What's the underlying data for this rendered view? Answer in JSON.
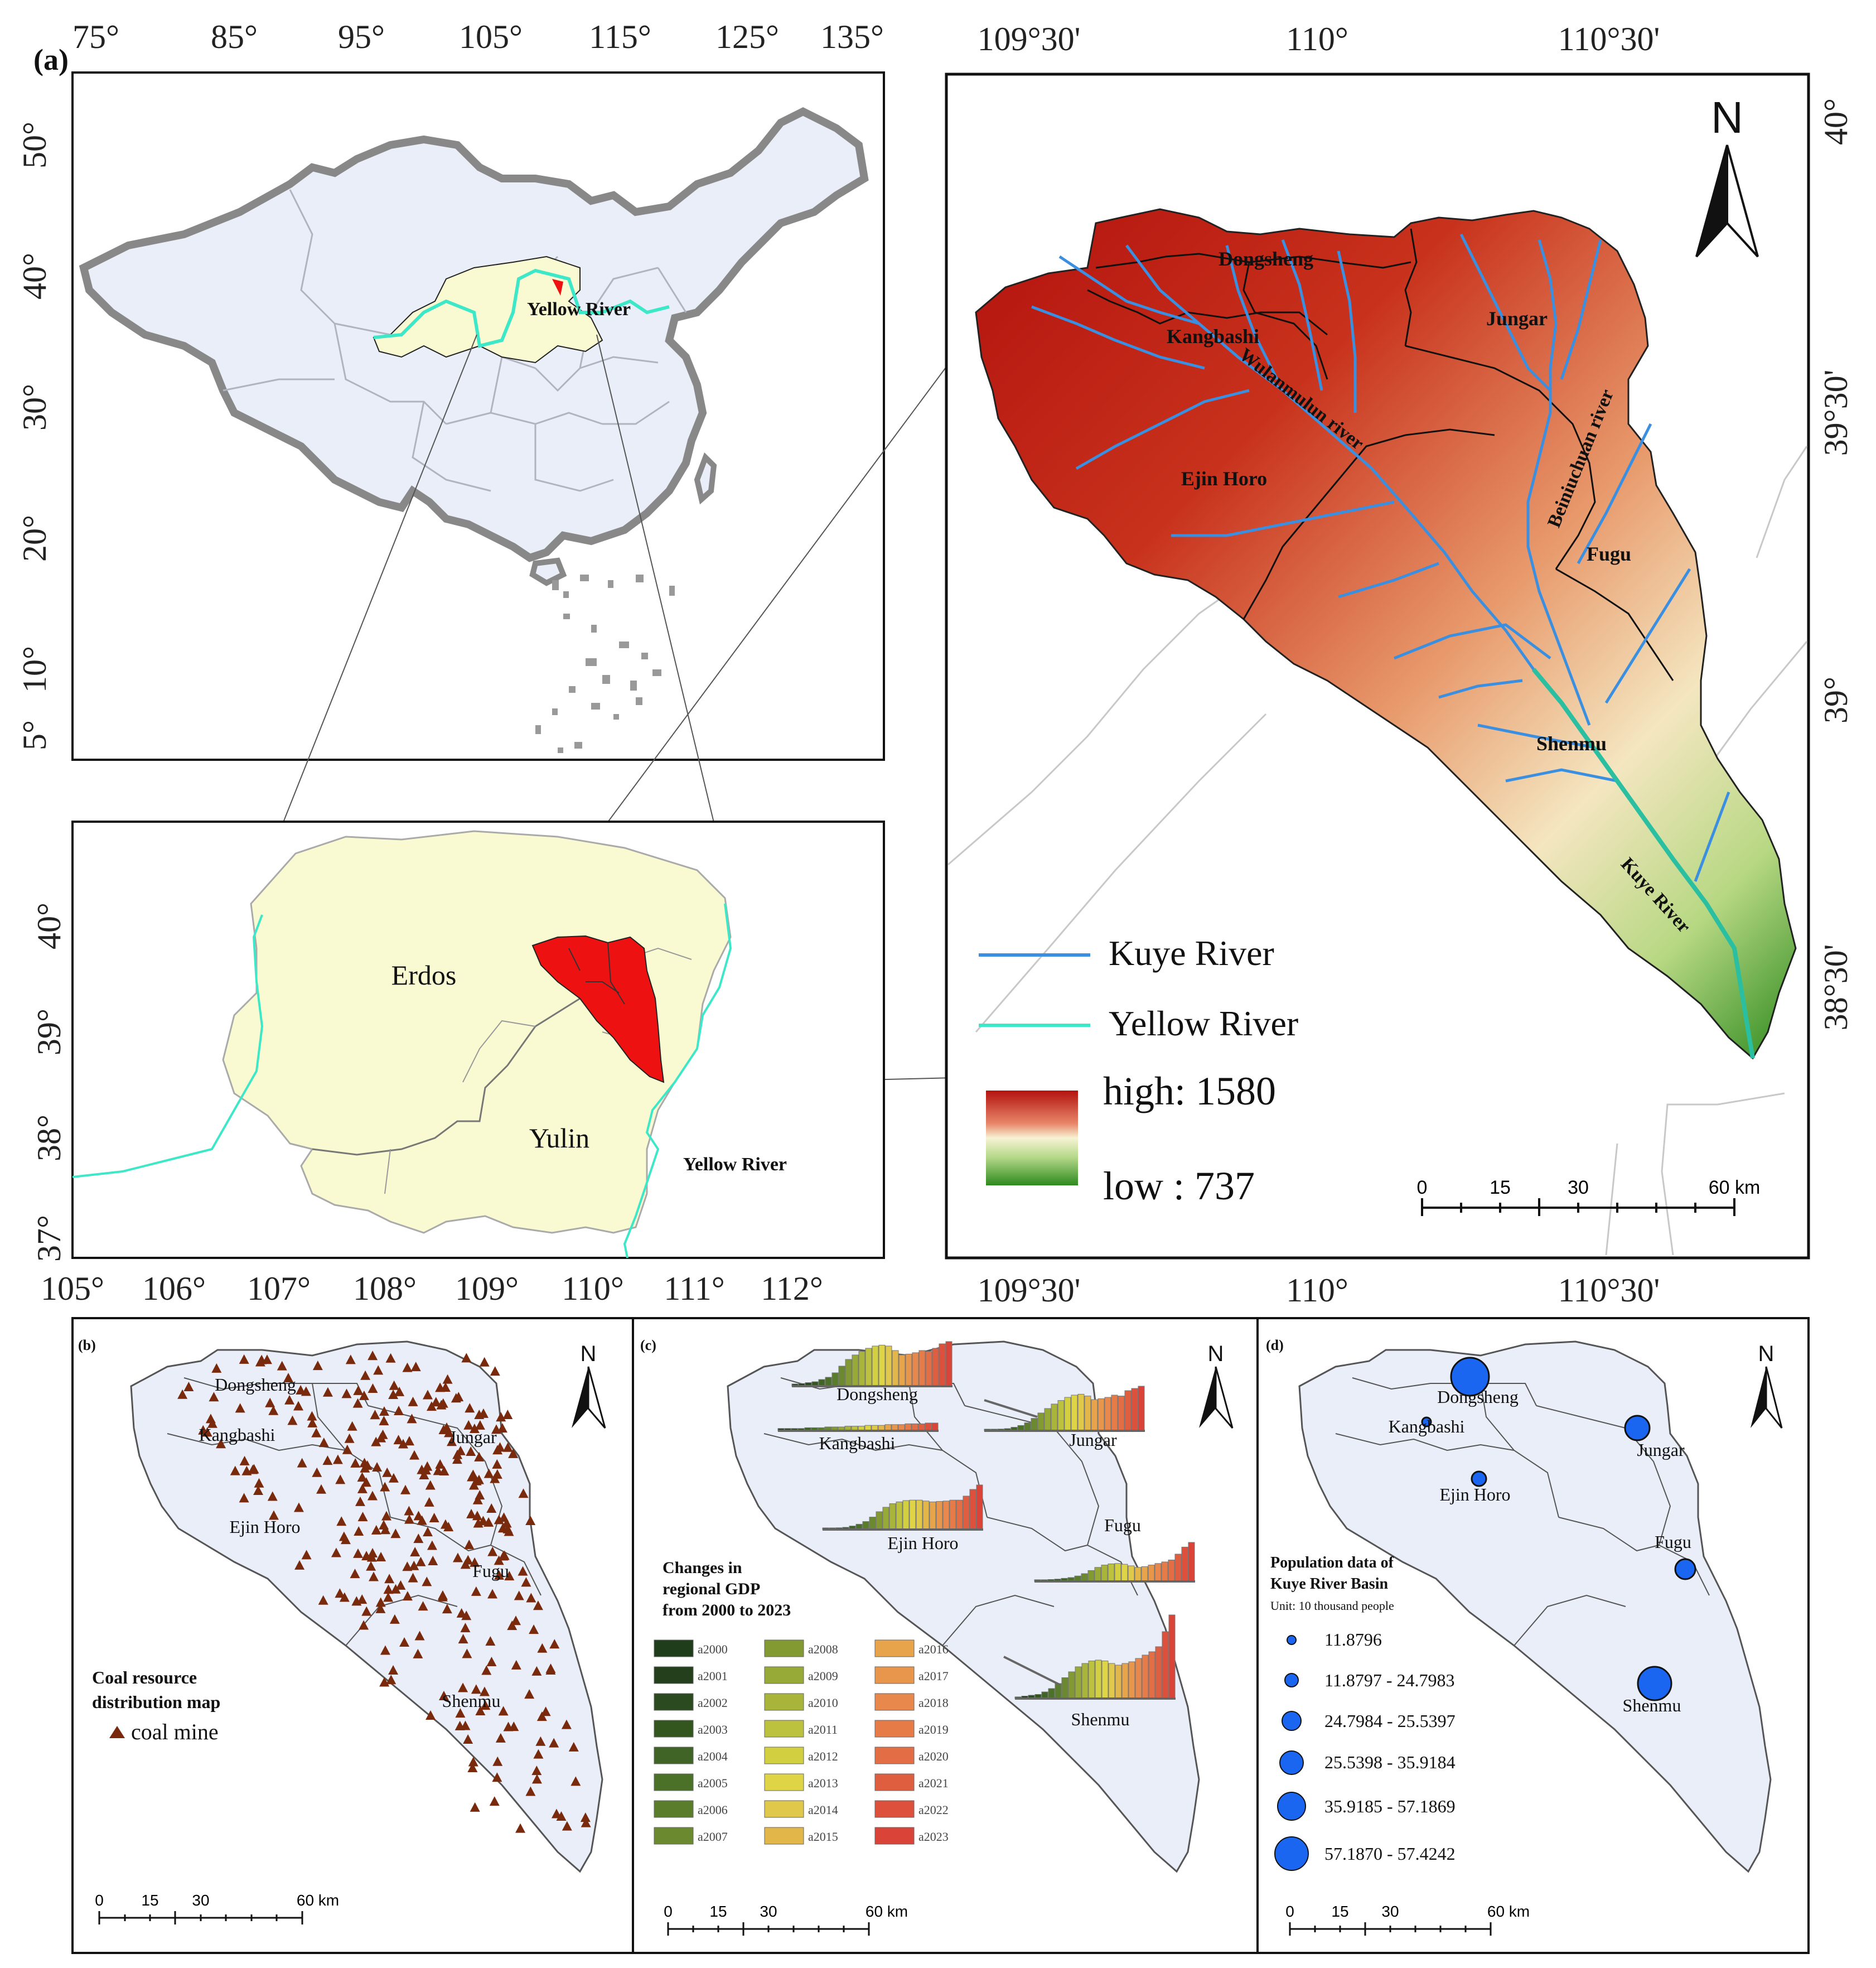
{
  "panel_a": {
    "tag": "(a)",
    "top_lon_ticks": [
      "75°",
      "85°",
      "95°",
      "105°",
      "115°",
      "125°",
      "135°"
    ],
    "china_lat_ticks": [
      "50°",
      "40°",
      "30°",
      "20°",
      "10°",
      "5°"
    ],
    "china_label_yellow_river": "Yellow River",
    "region_lat_ticks": [
      "40°",
      "39°",
      "38°",
      "37°"
    ],
    "region_lon_ticks": [
      "105°",
      "106°",
      "107°",
      "108°",
      "109°",
      "110°",
      "111°",
      "112°"
    ],
    "region_labels": {
      "erdos": "Erdos",
      "yulin": "Yulin",
      "yellow_river": "Yellow River"
    },
    "basin_top_ticks": [
      "109°30'",
      "110°",
      "110°30'"
    ],
    "basin_bottom_ticks": [
      "109°30'",
      "110°",
      "110°30'"
    ],
    "basin_right_ticks": [
      "40°",
      "39°30'",
      "39°",
      "38°30'"
    ],
    "north": "N",
    "places": {
      "dongsheng": "Dongsheng",
      "jungar": "Jungar",
      "kangbashi": "Kangbashi",
      "ejin_horo": "Ejin Horo",
      "fugu": "Fugu",
      "shenmu": "Shenmu"
    },
    "rivers": {
      "wulanmulun": "Wulanmulun river",
      "beiniuchuan": "Beiniuchuan river",
      "kuye": "Kuye River"
    },
    "legend": {
      "kuye": "Kuye River",
      "yellow": "Yellow River",
      "high": "high: 1580",
      "low": "low : 737"
    },
    "scale": [
      "0",
      "15",
      "30",
      "60 km"
    ],
    "colors": {
      "kuye": "#3a8fe0",
      "yellow": "#3de8c8",
      "high": "#b3120e",
      "mid": "#f4f0c8",
      "low": "#2d8a1e",
      "basin_red": "#ee1111",
      "china_fill": "#e9eef8",
      "region_fill": "#fafad2"
    }
  },
  "panel_b": {
    "tag": "(b)",
    "north": "N",
    "places": {
      "dongsheng": "Dongsheng",
      "kangbashi": "Kangbashi",
      "jungar": "Jungar",
      "ejin_horo": "Ejin Horo",
      "fugu": "Fugu",
      "shenmu": "Shenmu"
    },
    "title_line1": "Coal resource",
    "title_line2": "distribution map",
    "legend_item": "coal mine",
    "scale": [
      "0",
      "15",
      "30",
      "60 km"
    ],
    "mine_color": "#7a2a0c"
  },
  "panel_c": {
    "tag": "(c)",
    "north": "N",
    "places": {
      "dongsheng": "Dongsheng",
      "kangbashi": "Kangbashi",
      "jungar": "Jungar",
      "fugu": "Fugu",
      "ejin_horo": "Ejin Horo",
      "shenmu": "Shenmu"
    },
    "title_lines": [
      "Changes in",
      "regional GDP",
      "from 2000 to 2023"
    ],
    "legend_items": [
      "a2000",
      "a2001",
      "a2002",
      "a2003",
      "a2004",
      "a2005",
      "a2006",
      "a2007",
      "a2008",
      "a2009",
      "a2010",
      "a2011",
      "a2012",
      "a2013",
      "a2014",
      "a2015",
      "a2016",
      "a2017",
      "a2018",
      "a2019",
      "a2020",
      "a2021",
      "a2022",
      "a2023"
    ],
    "legend_colors": [
      "#1f3d1a",
      "#233f1c",
      "#2b4a20",
      "#33561f",
      "#3f6425",
      "#4b7028",
      "#5a7d2c",
      "#6b892f",
      "#839a33",
      "#97a936",
      "#a8b43a",
      "#bcc23d",
      "#d2d040",
      "#dfd446",
      "#e0c84a",
      "#e3b64a",
      "#e8a44a",
      "#e8964c",
      "#e8884c",
      "#e67b48",
      "#e36d44",
      "#e05e40",
      "#dd503c",
      "#d94338"
    ],
    "scale": [
      "0",
      "15",
      "30",
      "60 km"
    ]
  },
  "panel_d": {
    "tag": "(d)",
    "north": "N",
    "places": {
      "dongsheng": "Dongsheng",
      "kangbashi": "Kangbashi",
      "jungar": "Jungar",
      "ejin_horo": "Ejin Horo",
      "fugu": "Fugu",
      "shenmu": "Shenmu"
    },
    "title_line1": "Population data of",
    "title_line2": "Kuye River Basin",
    "unit": "Unit: 10 thousand people",
    "classes": [
      "11.8796",
      "11.8797 - 24.7983",
      "24.7984 - 25.5397",
      "25.5398 - 35.9184",
      "35.9185 - 57.1869",
      "57.1870 - 57.4242"
    ],
    "circle_color": "#1a66f0",
    "scale": [
      "0",
      "15",
      "30",
      "60 km"
    ]
  }
}
